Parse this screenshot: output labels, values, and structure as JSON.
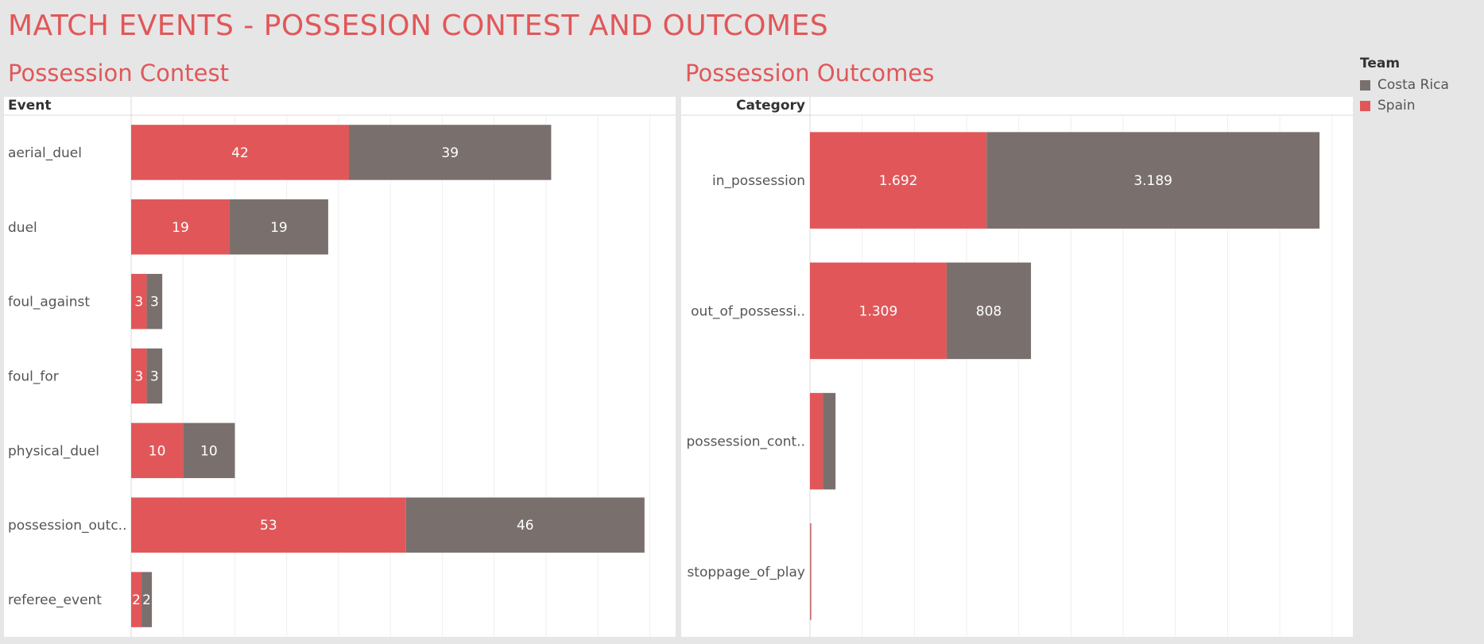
{
  "dashboard": {
    "title": "MATCH EVENTS - POSSESION CONTEST AND OUTCOMES"
  },
  "legend": {
    "title": "Team",
    "items": [
      {
        "label": "Costa Rica",
        "color": "#79706e"
      },
      {
        "label": "Spain",
        "color": "#e15759"
      }
    ]
  },
  "colors": {
    "spain": "#e15759",
    "costa_rica": "#79706e"
  },
  "chart_data": [
    {
      "type": "bar",
      "orientation": "horizontal",
      "stacked": true,
      "title": "Possession Contest",
      "row_header": "Event",
      "categories": [
        "aerial_duel",
        "duel",
        "foul_against",
        "foul_for",
        "physical_duel",
        "possession_outc..",
        "referee_event"
      ],
      "series": [
        {
          "name": "Spain",
          "values": [
            42,
            19,
            3,
            3,
            10,
            53,
            2
          ],
          "labels": [
            "42",
            "19",
            "3",
            "3",
            "10",
            "53",
            "2"
          ]
        },
        {
          "name": "Costa Rica",
          "values": [
            39,
            19,
            3,
            3,
            10,
            46,
            2
          ],
          "labels": [
            "39",
            "19",
            "3",
            "3",
            "10",
            "46",
            "2"
          ]
        }
      ],
      "xlim": [
        0,
        105
      ],
      "grid": true
    },
    {
      "type": "bar",
      "orientation": "horizontal",
      "stacked": true,
      "title": "Possession Outcomes",
      "row_header": "Category",
      "categories": [
        "in_possession",
        "out_of_possessi..",
        "possession_cont..",
        "stoppage_of_play"
      ],
      "series": [
        {
          "name": "Spain",
          "values": [
            1692,
            1309,
            125,
            5
          ],
          "labels": [
            "1.692",
            "1.309",
            "",
            ""
          ]
        },
        {
          "name": "Costa Rica",
          "values": [
            3189,
            808,
            120,
            5
          ],
          "labels": [
            "3.189",
            "808",
            "",
            ""
          ]
        }
      ],
      "xlim": [
        0,
        5200
      ],
      "grid": true
    }
  ]
}
